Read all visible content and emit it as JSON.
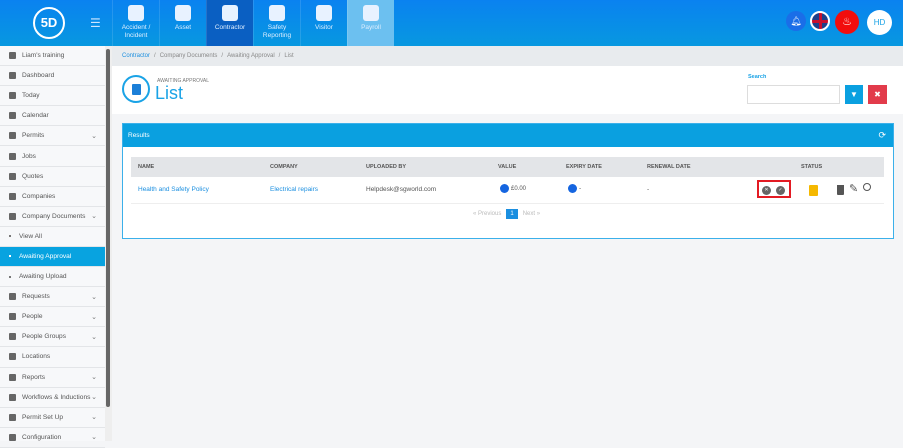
{
  "app": {
    "logo": "5D",
    "nav": [
      {
        "label": "Accident / Incident"
      },
      {
        "label": "Asset"
      },
      {
        "label": "Contractor",
        "active": true
      },
      {
        "label": "Safety Reporting"
      },
      {
        "label": "Visitor"
      },
      {
        "label": "Payroll"
      }
    ],
    "user_initials": "HD",
    "icons": [
      "bell-icon",
      "uk-flag-icon",
      "flame-icon"
    ]
  },
  "sidebar": {
    "items": [
      {
        "label": "Liam's training"
      },
      {
        "label": "Dashboard"
      },
      {
        "label": "Today"
      },
      {
        "label": "Calendar"
      },
      {
        "label": "Permits",
        "chevron": true
      },
      {
        "label": "Jobs"
      },
      {
        "label": "Quotes"
      },
      {
        "label": "Companies"
      },
      {
        "label": "Company Documents",
        "chevron": true
      },
      {
        "label": "View All",
        "sub": true
      },
      {
        "label": "Awaiting Approval",
        "sub": true,
        "selected": true
      },
      {
        "label": "Awaiting Upload",
        "sub": true
      },
      {
        "label": "Requests",
        "chevron": true
      },
      {
        "label": "People",
        "chevron": true
      },
      {
        "label": "People Groups",
        "chevron": true
      },
      {
        "label": "Locations"
      },
      {
        "label": "Reports",
        "chevron": true
      },
      {
        "label": "Workflows & Inductions",
        "chevron": true
      },
      {
        "label": "Permit Set Up",
        "chevron": true
      },
      {
        "label": "Configuration",
        "chevron": true
      }
    ]
  },
  "breadcrumb": [
    "Contractor",
    "Company Documents",
    "Awaiting Approval",
    "List"
  ],
  "header": {
    "subtitle": "AWAITING APPROVAL",
    "title": "List"
  },
  "search": {
    "label": "Search",
    "value": "",
    "placeholder": ""
  },
  "results": {
    "title": "Results",
    "columns": [
      "NAME",
      "COMPANY",
      "UPLOADED BY",
      "VALUE",
      "EXPIRY DATE",
      "RENEWAL DATE",
      "STATUS"
    ],
    "rows": [
      {
        "name": "Health and Safety Policy",
        "company": "Electrical repairs",
        "uploaded_by": "Helpdesk@sgworld.com",
        "value": "£0.00",
        "expiry": "-",
        "renewal": "-"
      }
    ],
    "pagination": {
      "previous": "« Previous",
      "current": "1",
      "next": "Next »"
    }
  },
  "colors": {
    "accent": "#0aa0e0",
    "highlight": "#e31b23",
    "danger": "#e23b4b"
  }
}
